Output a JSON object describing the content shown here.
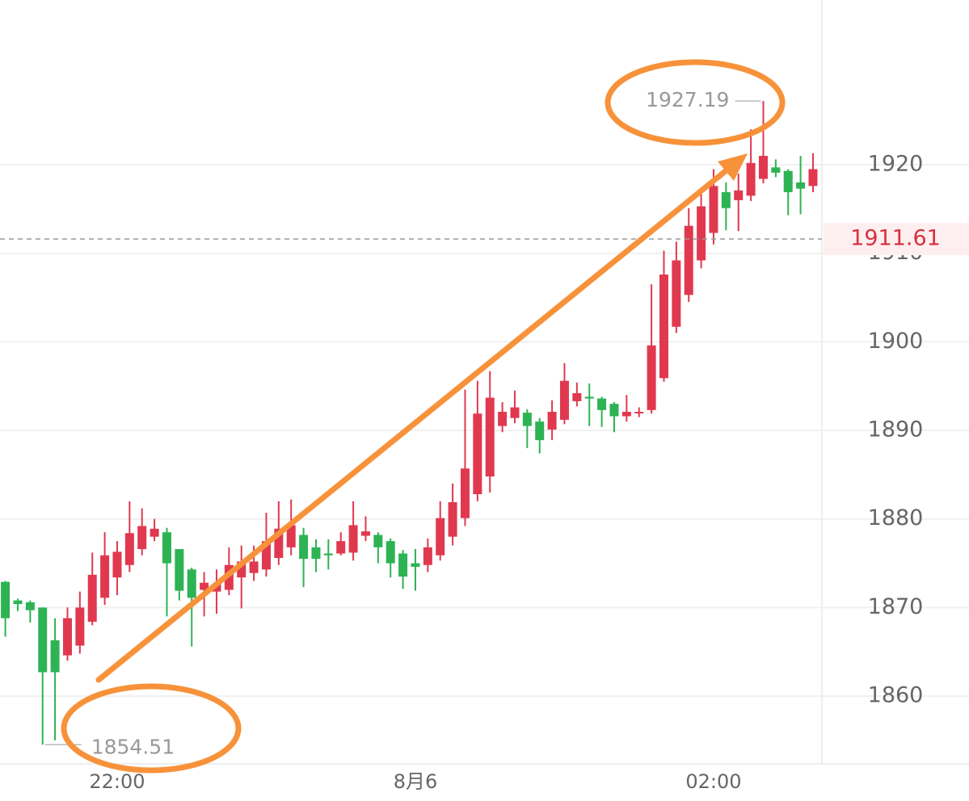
{
  "chart_data": {
    "type": "candlestick",
    "categories": [
      null,
      null,
      null,
      null,
      null,
      null,
      null,
      null,
      null,
      "22:00",
      null,
      null,
      null,
      null,
      null,
      null,
      null,
      null,
      null,
      null,
      null,
      null,
      null,
      null,
      null,
      null,
      null,
      null,
      null,
      null,
      null,
      null,
      null,
      "8月6",
      null,
      null,
      null,
      null,
      null,
      null,
      null,
      null,
      null,
      null,
      null,
      null,
      null,
      null,
      null,
      null,
      null,
      null,
      null,
      null,
      null,
      null,
      null,
      "02:00",
      null,
      null,
      null,
      null,
      null,
      null,
      null,
      null
    ],
    "open": [
      1872.9,
      1870.8,
      1870.6,
      1870.0,
      1866.3,
      1864.6,
      1865.7,
      1868.4,
      1871.1,
      1873.4,
      1874.8,
      1876.6,
      1878.0,
      1878.5,
      1876.6,
      1874.3,
      1872.0,
      1871.8,
      1872.0,
      1873.4,
      1873.9,
      1874.3,
      1875.6,
      1876.8,
      1878.2,
      1876.8,
      1876.1,
      1876.1,
      1876.2,
      1878.1,
      1878.2,
      1877.5,
      1876.1,
      1875.0,
      1874.8,
      1875.9,
      1878.0,
      1880.1,
      1882.8,
      1884.8,
      1890.5,
      1891.4,
      1892.0,
      1891.0,
      1890.1,
      1891.2,
      1893.3,
      1893.8,
      1893.6,
      1893.0,
      1891.6,
      1892.0,
      1892.3,
      1895.9,
      1901.7,
      1905.3,
      1909.2,
      1912.3,
      1916.9,
      1916.0,
      1916.5,
      1918.4,
      1919.7,
      1919.3,
      1918.0,
      1917.6
    ],
    "high": [
      1873.0,
      1871.0,
      1870.8,
      1870.0,
      1868.8,
      1870.0,
      1871.8,
      1876.2,
      1878.5,
      1877.5,
      1882.0,
      1881.2,
      1880.0,
      1879.0,
      1876.6,
      1874.5,
      1874.0,
      1874.3,
      1876.8,
      1877.0,
      1877.0,
      1880.7,
      1882.0,
      1882.2,
      1879.0,
      1877.7,
      1877.7,
      1878.5,
      1882.0,
      1880.3,
      1878.5,
      1877.8,
      1876.5,
      1876.6,
      1877.8,
      1882.0,
      1884.0,
      1894.6,
      1895.6,
      1896.7,
      1893.2,
      1894.5,
      1892.4,
      1891.4,
      1893.4,
      1897.6,
      1895.4,
      1895.3,
      1893.8,
      1893.2,
      1894.0,
      1892.6,
      1906.5,
      1910.3,
      1911.3,
      1915.1,
      1917.3,
      1919.5,
      1918.0,
      1919.0,
      1924.0,
      1927.19,
      1920.6,
      1919.5,
      1921.0,
      1921.3
    ],
    "low": [
      1866.7,
      1869.6,
      1868.3,
      1854.51,
      1855.0,
      1864.0,
      1864.8,
      1868.0,
      1870.3,
      1871.4,
      1874.0,
      1875.9,
      1877.5,
      1869.0,
      1870.8,
      1865.6,
      1869.0,
      1869.3,
      1871.4,
      1869.9,
      1873.0,
      1873.5,
      1874.8,
      1875.9,
      1872.3,
      1874.0,
      1874.3,
      1875.9,
      1875.3,
      1877.5,
      1875.0,
      1873.4,
      1872.1,
      1871.9,
      1874.0,
      1875.3,
      1877.0,
      1879.2,
      1882.0,
      1883.0,
      1889.8,
      1890.8,
      1888.0,
      1887.4,
      1888.9,
      1890.7,
      1892.7,
      1890.5,
      1890.4,
      1889.8,
      1891.0,
      1891.5,
      1891.9,
      1895.5,
      1901.0,
      1904.5,
      1908.3,
      1911.0,
      1912.6,
      1912.5,
      1915.9,
      1917.9,
      1918.6,
      1914.3,
      1914.4,
      1916.9
    ],
    "close": [
      1868.8,
      1870.4,
      1869.7,
      1862.7,
      1862.7,
      1868.8,
      1870.0,
      1873.7,
      1875.9,
      1876.3,
      1878.4,
      1879.2,
      1878.9,
      1875.0,
      1871.9,
      1871.1,
      1872.8,
      1872.7,
      1874.8,
      1875.2,
      1875.2,
      1877.5,
      1878.9,
      1879.3,
      1875.5,
      1875.5,
      1875.9,
      1877.5,
      1879.3,
      1878.6,
      1876.8,
      1875.0,
      1873.5,
      1874.6,
      1876.8,
      1880.1,
      1881.9,
      1885.7,
      1891.9,
      1893.7,
      1892.1,
      1892.6,
      1890.5,
      1888.9,
      1892.1,
      1895.6,
      1894.2,
      1893.6,
      1892.3,
      1891.6,
      1892.1,
      1892.1,
      1899.6,
      1907.6,
      1909.2,
      1913.1,
      1915.3,
      1917.6,
      1915.1,
      1917.1,
      1920.2,
      1921.0,
      1919.1,
      1916.9,
      1917.3,
      1919.5
    ],
    "up_color": "#e0394f",
    "down_color": "#2db354",
    "last_price": 1911.61,
    "ylim": [
      1852.35,
      1938.6
    ],
    "yticks": [
      1860,
      1870,
      1880,
      1890,
      1900,
      1910,
      1920
    ],
    "grid": true
  }
}
